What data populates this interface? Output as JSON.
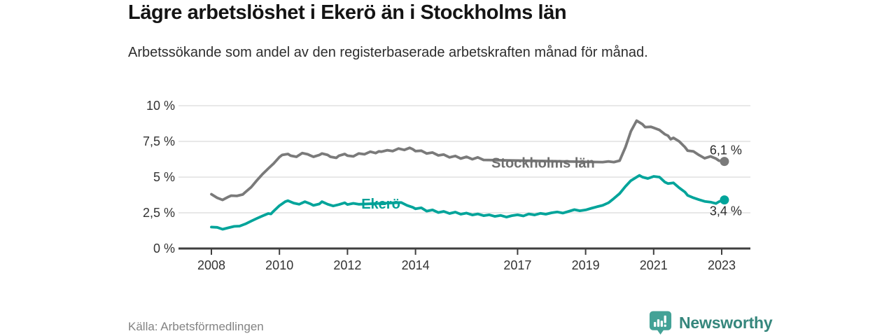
{
  "header": {
    "title": "Lägre arbetslöshet i Ekerö än i Stockholms län",
    "subtitle": "Arbetssökande som andel av den registerbaserade arbetskraften månad för månad."
  },
  "footer": {
    "source": "Källa: Arbetsförmedlingen",
    "brand": "Newsworthy"
  },
  "colors": {
    "series_gray": "#7a7a7a",
    "series_gray_label": "#6f6f6f",
    "series_teal": "#00a49a",
    "series_teal_label": "#00a096",
    "grid": "#e0e0e0",
    "axis": "#3f3f3f",
    "brand_teal": "#35867c",
    "logo_teal": "#43a296"
  },
  "chart_data": {
    "type": "line",
    "title": "Lägre arbetslöshet i Ekerö än i Stockholms län",
    "subtitle": "Arbetssökande som andel av den registerbaserade arbetskraften månad för månad.",
    "unit": "%",
    "grid": true,
    "xlim": [
      2007,
      2023.8
    ],
    "ylim": [
      0,
      10
    ],
    "x_ticks": [
      {
        "year": 2008,
        "label": "2008"
      },
      {
        "year": 2010,
        "label": "2010"
      },
      {
        "year": 2012,
        "label": "2012"
      },
      {
        "year": 2014,
        "label": "2014"
      },
      {
        "year": 2017,
        "label": "2017"
      },
      {
        "year": 2019,
        "label": "2019"
      },
      {
        "year": 2021,
        "label": "2021"
      },
      {
        "year": 2023,
        "label": "2023"
      }
    ],
    "y_ticks": [
      {
        "value": 0,
        "label": "0 %"
      },
      {
        "value": 2.5,
        "label": "2,5 %"
      },
      {
        "value": 5,
        "label": "5 %"
      },
      {
        "value": 7.5,
        "label": "7,5 %"
      },
      {
        "value": 10,
        "label": "10 %"
      }
    ],
    "series": [
      {
        "id": "stockholm",
        "name": "Stockholms län",
        "color": "#7a7a7a",
        "label_color": "#6f6f6f",
        "label_pos": [
          2017.75,
          6.0
        ],
        "label_gap": {
          "from": 2016.02,
          "to": 2019.48
        },
        "end_label": {
          "text": "6,1 %",
          "side": "above"
        },
        "latest_value": 6.1,
        "points": [
          [
            2008.0,
            3.8
          ],
          [
            2008.17,
            3.55
          ],
          [
            2008.33,
            3.4
          ],
          [
            2008.5,
            3.62
          ],
          [
            2008.58,
            3.7
          ],
          [
            2008.75,
            3.68
          ],
          [
            2008.92,
            3.78
          ],
          [
            2009.0,
            3.95
          ],
          [
            2009.17,
            4.3
          ],
          [
            2009.33,
            4.75
          ],
          [
            2009.5,
            5.2
          ],
          [
            2009.67,
            5.6
          ],
          [
            2009.83,
            5.95
          ],
          [
            2010.0,
            6.4
          ],
          [
            2010.08,
            6.55
          ],
          [
            2010.25,
            6.62
          ],
          [
            2010.33,
            6.5
          ],
          [
            2010.5,
            6.42
          ],
          [
            2010.67,
            6.68
          ],
          [
            2010.83,
            6.6
          ],
          [
            2010.92,
            6.5
          ],
          [
            2011.0,
            6.42
          ],
          [
            2011.17,
            6.55
          ],
          [
            2011.25,
            6.65
          ],
          [
            2011.42,
            6.55
          ],
          [
            2011.5,
            6.42
          ],
          [
            2011.67,
            6.35
          ],
          [
            2011.75,
            6.5
          ],
          [
            2011.92,
            6.62
          ],
          [
            2012.0,
            6.5
          ],
          [
            2012.17,
            6.45
          ],
          [
            2012.33,
            6.65
          ],
          [
            2012.5,
            6.6
          ],
          [
            2012.67,
            6.78
          ],
          [
            2012.83,
            6.68
          ],
          [
            2012.92,
            6.8
          ],
          [
            2013.0,
            6.78
          ],
          [
            2013.17,
            6.88
          ],
          [
            2013.33,
            6.82
          ],
          [
            2013.5,
            7.0
          ],
          [
            2013.67,
            6.9
          ],
          [
            2013.83,
            7.05
          ],
          [
            2013.92,
            6.95
          ],
          [
            2014.0,
            6.82
          ],
          [
            2014.17,
            6.85
          ],
          [
            2014.33,
            6.65
          ],
          [
            2014.5,
            6.72
          ],
          [
            2014.67,
            6.52
          ],
          [
            2014.83,
            6.58
          ],
          [
            2015.0,
            6.38
          ],
          [
            2015.17,
            6.48
          ],
          [
            2015.33,
            6.3
          ],
          [
            2015.5,
            6.42
          ],
          [
            2015.67,
            6.25
          ],
          [
            2015.83,
            6.38
          ],
          [
            2016.0,
            6.2
          ],
          [
            2019.5,
            6.05
          ],
          [
            2019.67,
            6.1
          ],
          [
            2019.83,
            6.05
          ],
          [
            2020.0,
            6.15
          ],
          [
            2020.17,
            7.1
          ],
          [
            2020.33,
            8.2
          ],
          [
            2020.5,
            8.95
          ],
          [
            2020.67,
            8.7
          ],
          [
            2020.75,
            8.5
          ],
          [
            2020.92,
            8.52
          ],
          [
            2021.0,
            8.45
          ],
          [
            2021.17,
            8.3
          ],
          [
            2021.33,
            8.0
          ],
          [
            2021.42,
            7.9
          ],
          [
            2021.5,
            7.65
          ],
          [
            2021.58,
            7.75
          ],
          [
            2021.75,
            7.5
          ],
          [
            2021.92,
            7.1
          ],
          [
            2022.0,
            6.85
          ],
          [
            2022.17,
            6.8
          ],
          [
            2022.33,
            6.55
          ],
          [
            2022.5,
            6.32
          ],
          [
            2022.67,
            6.45
          ],
          [
            2022.83,
            6.3
          ],
          [
            2022.92,
            6.15
          ],
          [
            2023.08,
            6.1
          ]
        ]
      },
      {
        "id": "ekero",
        "name": "Ekerö",
        "color": "#00a49a",
        "label_color": "#00a096",
        "label_pos": [
          2012.98,
          3.14
        ],
        "label_gap": {
          "from": 2012.38,
          "to": 2013.56
        },
        "end_label": {
          "text": "3,4 %",
          "side": "below"
        },
        "latest_value": 3.4,
        "points": [
          [
            2008.0,
            1.5
          ],
          [
            2008.17,
            1.48
          ],
          [
            2008.33,
            1.35
          ],
          [
            2008.5,
            1.45
          ],
          [
            2008.67,
            1.55
          ],
          [
            2008.83,
            1.57
          ],
          [
            2009.0,
            1.72
          ],
          [
            2009.17,
            1.92
          ],
          [
            2009.33,
            2.1
          ],
          [
            2009.5,
            2.28
          ],
          [
            2009.67,
            2.45
          ],
          [
            2009.75,
            2.42
          ],
          [
            2009.83,
            2.62
          ],
          [
            2010.0,
            3.0
          ],
          [
            2010.17,
            3.28
          ],
          [
            2010.25,
            3.35
          ],
          [
            2010.42,
            3.18
          ],
          [
            2010.58,
            3.1
          ],
          [
            2010.75,
            3.28
          ],
          [
            2010.92,
            3.12
          ],
          [
            2011.0,
            3.02
          ],
          [
            2011.17,
            3.12
          ],
          [
            2011.25,
            3.28
          ],
          [
            2011.42,
            3.1
          ],
          [
            2011.58,
            2.98
          ],
          [
            2011.75,
            3.08
          ],
          [
            2011.92,
            3.2
          ],
          [
            2012.0,
            3.08
          ],
          [
            2012.17,
            3.16
          ],
          [
            2012.33,
            3.1
          ],
          [
            2013.58,
            3.22
          ],
          [
            2013.75,
            3.02
          ],
          [
            2013.92,
            2.88
          ],
          [
            2014.0,
            2.78
          ],
          [
            2014.17,
            2.85
          ],
          [
            2014.33,
            2.62
          ],
          [
            2014.5,
            2.7
          ],
          [
            2014.67,
            2.52
          ],
          [
            2014.83,
            2.6
          ],
          [
            2015.0,
            2.45
          ],
          [
            2015.17,
            2.55
          ],
          [
            2015.33,
            2.4
          ],
          [
            2015.5,
            2.48
          ],
          [
            2015.67,
            2.35
          ],
          [
            2015.83,
            2.42
          ],
          [
            2016.0,
            2.3
          ],
          [
            2016.17,
            2.36
          ],
          [
            2016.33,
            2.25
          ],
          [
            2016.5,
            2.32
          ],
          [
            2016.67,
            2.2
          ],
          [
            2016.83,
            2.3
          ],
          [
            2017.0,
            2.36
          ],
          [
            2017.17,
            2.28
          ],
          [
            2017.33,
            2.42
          ],
          [
            2017.5,
            2.35
          ],
          [
            2017.67,
            2.46
          ],
          [
            2017.83,
            2.4
          ],
          [
            2018.0,
            2.5
          ],
          [
            2018.17,
            2.56
          ],
          [
            2018.33,
            2.48
          ],
          [
            2018.5,
            2.6
          ],
          [
            2018.67,
            2.72
          ],
          [
            2018.83,
            2.64
          ],
          [
            2019.0,
            2.7
          ],
          [
            2019.17,
            2.82
          ],
          [
            2019.33,
            2.92
          ],
          [
            2019.5,
            3.02
          ],
          [
            2019.67,
            3.2
          ],
          [
            2019.83,
            3.5
          ],
          [
            2020.0,
            3.85
          ],
          [
            2020.17,
            4.35
          ],
          [
            2020.33,
            4.75
          ],
          [
            2020.5,
            5.0
          ],
          [
            2020.58,
            5.12
          ],
          [
            2020.67,
            5.0
          ],
          [
            2020.83,
            4.9
          ],
          [
            2021.0,
            5.05
          ],
          [
            2021.17,
            5.0
          ],
          [
            2021.33,
            4.65
          ],
          [
            2021.42,
            4.55
          ],
          [
            2021.58,
            4.6
          ],
          [
            2021.75,
            4.25
          ],
          [
            2021.92,
            3.95
          ],
          [
            2022.0,
            3.72
          ],
          [
            2022.17,
            3.55
          ],
          [
            2022.33,
            3.42
          ],
          [
            2022.5,
            3.3
          ],
          [
            2022.67,
            3.25
          ],
          [
            2022.83,
            3.15
          ],
          [
            2022.92,
            3.28
          ],
          [
            2023.08,
            3.4
          ]
        ]
      }
    ]
  }
}
